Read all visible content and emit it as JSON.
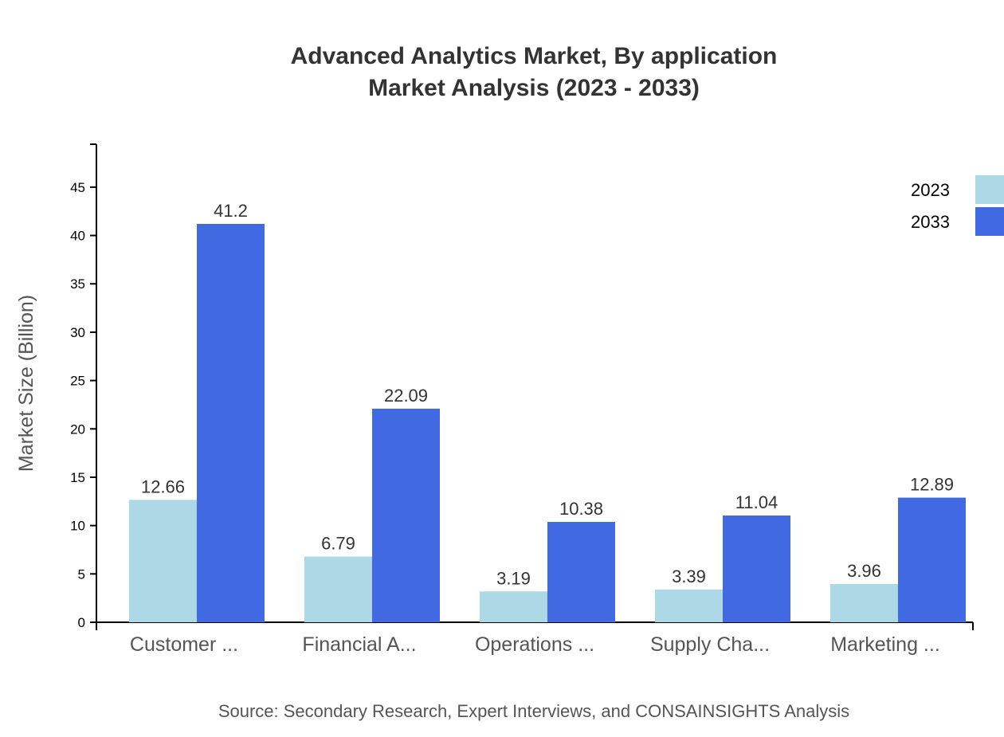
{
  "chart_data": {
    "type": "bar",
    "title": "Advanced Analytics Market, By application",
    "subtitle": "Market Analysis (2023 - 2033)",
    "xlabel": "",
    "ylabel": "Market Size (Billion)",
    "ylim": [
      0,
      49.44
    ],
    "yticks": [
      0,
      5,
      10,
      15,
      20,
      25,
      30,
      35,
      40,
      45
    ],
    "categories": [
      "Customer ...",
      "Financial A...",
      "Operations ...",
      "Supply Cha...",
      "Marketing ..."
    ],
    "series": [
      {
        "name": "2023",
        "color": "#add8e6",
        "values": [
          12.66,
          6.79,
          3.19,
          3.39,
          3.96
        ]
      },
      {
        "name": "2033",
        "color": "#4169e1",
        "values": [
          41.2,
          22.09,
          10.38,
          11.04,
          12.89
        ]
      }
    ],
    "legend_position": "top-right",
    "grid": false,
    "source": "Source: Secondary Research, Expert Interviews, and CONSAINSIGHTS Analysis"
  }
}
